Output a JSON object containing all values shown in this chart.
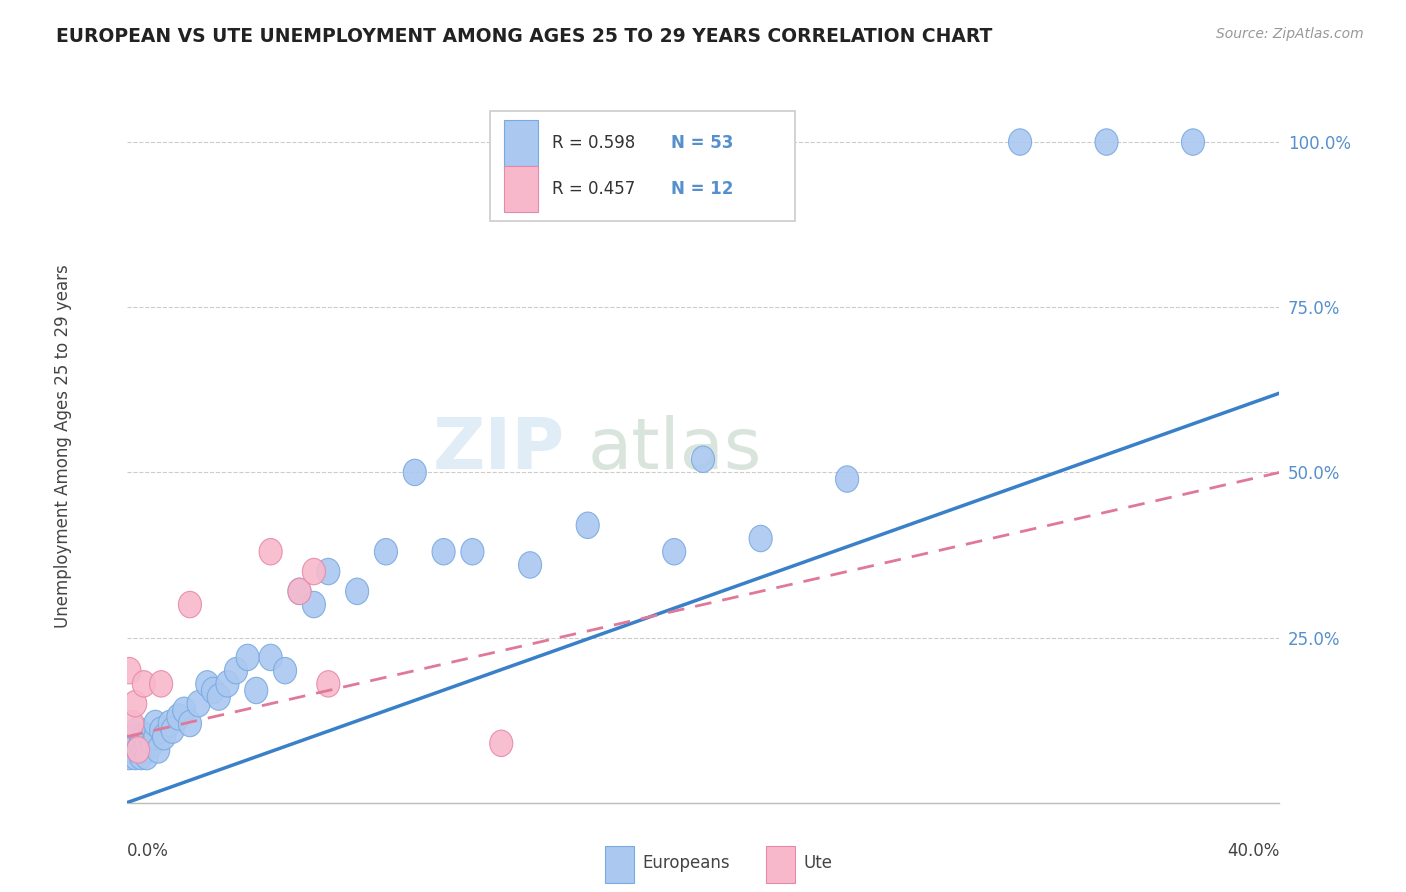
{
  "title": "EUROPEAN VS UTE UNEMPLOYMENT AMONG AGES 25 TO 29 YEARS CORRELATION CHART",
  "source": "Source: ZipAtlas.com",
  "ylabel": "Unemployment Among Ages 25 to 29 years",
  "blue_color": "#aac8f0",
  "blue_edge": "#7aaae0",
  "pink_color": "#f8b8cc",
  "pink_edge": "#e888a8",
  "line_blue": "#3a80c8",
  "line_pink": "#e07898",
  "grid_color": "#cccccc",
  "tick_color": "#5590cc",
  "europeans_x": [
    0.001,
    0.001,
    0.002,
    0.002,
    0.003,
    0.003,
    0.004,
    0.004,
    0.005,
    0.005,
    0.006,
    0.006,
    0.007,
    0.007,
    0.008,
    0.009,
    0.01,
    0.01,
    0.011,
    0.012,
    0.013,
    0.015,
    0.016,
    0.018,
    0.02,
    0.022,
    0.025,
    0.028,
    0.03,
    0.032,
    0.035,
    0.038,
    0.042,
    0.045,
    0.05,
    0.055,
    0.06,
    0.065,
    0.07,
    0.08,
    0.09,
    0.1,
    0.11,
    0.12,
    0.14,
    0.16,
    0.19,
    0.22,
    0.31,
    0.34,
    0.37,
    0.2,
    0.25
  ],
  "europeans_y": [
    0.07,
    0.09,
    0.08,
    0.1,
    0.07,
    0.09,
    0.08,
    0.11,
    0.09,
    0.07,
    0.1,
    0.08,
    0.09,
    0.07,
    0.1,
    0.09,
    0.1,
    0.12,
    0.08,
    0.11,
    0.1,
    0.12,
    0.11,
    0.13,
    0.14,
    0.12,
    0.15,
    0.18,
    0.17,
    0.16,
    0.18,
    0.2,
    0.22,
    0.17,
    0.22,
    0.2,
    0.32,
    0.3,
    0.35,
    0.32,
    0.38,
    0.5,
    0.38,
    0.38,
    0.36,
    0.42,
    0.38,
    0.4,
    1.0,
    1.0,
    1.0,
    0.52,
    0.49
  ],
  "ute_x": [
    0.001,
    0.002,
    0.003,
    0.004,
    0.006,
    0.012,
    0.022,
    0.05,
    0.06,
    0.065,
    0.07,
    0.13
  ],
  "ute_y": [
    0.2,
    0.12,
    0.15,
    0.08,
    0.18,
    0.18,
    0.3,
    0.38,
    0.32,
    0.35,
    0.18,
    0.09
  ],
  "blue_line_x": [
    0.0,
    0.4
  ],
  "blue_line_y": [
    0.0,
    0.62
  ],
  "pink_line_x": [
    0.0,
    0.4
  ],
  "pink_line_y": [
    0.1,
    0.5
  ],
  "xlim": [
    0,
    0.4
  ],
  "ylim": [
    0,
    1.08
  ],
  "yticks": [
    0.25,
    0.5,
    0.75,
    1.0
  ],
  "ytick_labels": [
    "25.0%",
    "50.0%",
    "75.0%",
    "100.0%"
  ]
}
